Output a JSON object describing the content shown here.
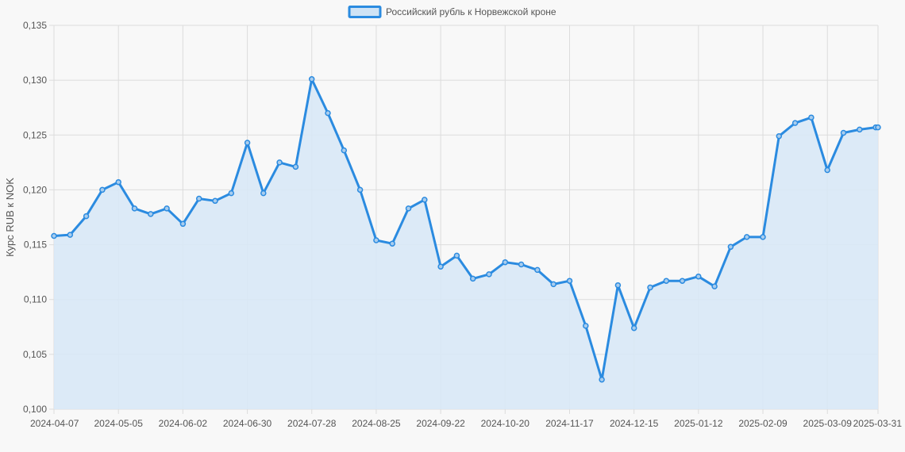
{
  "chart_data": {
    "type": "line",
    "ylabel": "Курс RUB к NOK",
    "ylim": [
      0.1,
      0.135
    ],
    "y_ticks": [
      "0,100",
      "0,105",
      "0,110",
      "0,115",
      "0,120",
      "0,125",
      "0,130",
      "0,135"
    ],
    "x_ticks": [
      "2024-04-07",
      "2024-05-05",
      "2024-06-02",
      "2024-06-30",
      "2024-07-28",
      "2024-08-25",
      "2024-09-22",
      "2024-10-20",
      "2024-11-17",
      "2024-12-15",
      "2025-01-12",
      "2025-02-09",
      "2025-03-09",
      "2025-03-31"
    ],
    "grid": true,
    "legend_position": "top",
    "colors": {
      "line": "#2b8be0",
      "fill": "#d8e8f6",
      "legend_fill": "#cfe3f5"
    },
    "series": [
      {
        "name": "Российский рубль к Норвежской кроне",
        "x": [
          "2024-04-07",
          "2024-04-14",
          "2024-04-21",
          "2024-04-28",
          "2024-05-05",
          "2024-05-12",
          "2024-05-19",
          "2024-05-26",
          "2024-06-02",
          "2024-06-09",
          "2024-06-16",
          "2024-06-23",
          "2024-06-30",
          "2024-07-07",
          "2024-07-14",
          "2024-07-21",
          "2024-07-28",
          "2024-08-04",
          "2024-08-11",
          "2024-08-18",
          "2024-08-25",
          "2024-09-01",
          "2024-09-08",
          "2024-09-15",
          "2024-09-22",
          "2024-09-29",
          "2024-10-06",
          "2024-10-13",
          "2024-10-20",
          "2024-10-27",
          "2024-11-03",
          "2024-11-10",
          "2024-11-17",
          "2024-11-24",
          "2024-12-01",
          "2024-12-08",
          "2024-12-15",
          "2024-12-22",
          "2024-12-29",
          "2025-01-05",
          "2025-01-12",
          "2025-01-19",
          "2025-01-26",
          "2025-02-02",
          "2025-02-09",
          "2025-02-16",
          "2025-02-23",
          "2025-03-02",
          "2025-03-09",
          "2025-03-16",
          "2025-03-23",
          "2025-03-30",
          "2025-03-31"
        ],
        "values": [
          0.1158,
          0.1159,
          0.1176,
          0.12,
          0.1207,
          0.1183,
          0.1178,
          0.1183,
          0.1169,
          0.1192,
          0.119,
          0.1197,
          0.1243,
          0.1197,
          0.1225,
          0.1221,
          0.1301,
          0.127,
          0.1236,
          0.12,
          0.1154,
          0.1151,
          0.1183,
          0.1191,
          0.113,
          0.114,
          0.1119,
          0.1123,
          0.1134,
          0.1132,
          0.1127,
          0.1114,
          0.1117,
          0.1076,
          0.1027,
          0.1113,
          0.1074,
          0.1111,
          0.1117,
          0.1117,
          0.1121,
          0.1112,
          0.1148,
          0.1157,
          0.1157,
          0.1249,
          0.1261,
          0.1266,
          0.1218,
          0.1252,
          0.1255,
          0.1257,
          0.1257
        ]
      }
    ]
  }
}
